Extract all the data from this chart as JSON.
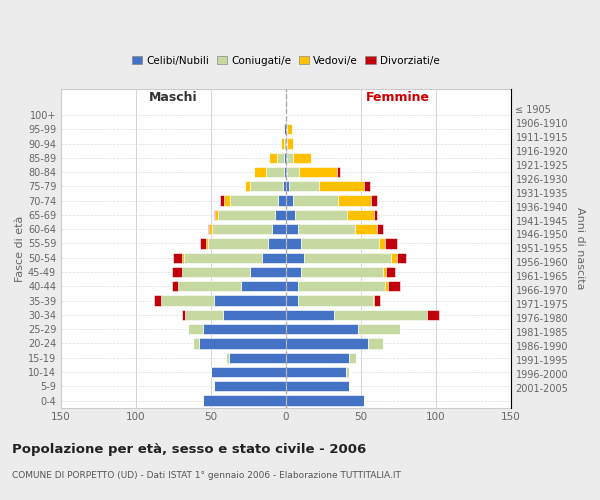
{
  "age_groups_bottom_to_top": [
    "0-4",
    "5-9",
    "10-14",
    "15-19",
    "20-24",
    "25-29",
    "30-34",
    "35-39",
    "40-44",
    "45-49",
    "50-54",
    "55-59",
    "60-64",
    "65-69",
    "70-74",
    "75-79",
    "80-84",
    "85-89",
    "90-94",
    "95-99",
    "100+"
  ],
  "birth_years_bottom_to_top": [
    "2001-2005",
    "1996-2000",
    "1991-1995",
    "1986-1990",
    "1981-1985",
    "1976-1980",
    "1971-1975",
    "1966-1970",
    "1961-1965",
    "1956-1960",
    "1951-1955",
    "1946-1950",
    "1941-1945",
    "1936-1940",
    "1931-1935",
    "1926-1930",
    "1921-1925",
    "1916-1920",
    "1911-1915",
    "1906-1910",
    "≤ 1905"
  ],
  "maschi": {
    "celibi": [
      55,
      48,
      50,
      38,
      58,
      55,
      42,
      48,
      30,
      24,
      16,
      12,
      9,
      7,
      5,
      2,
      1,
      1,
      0,
      1,
      0
    ],
    "coniugati": [
      0,
      0,
      0,
      2,
      4,
      10,
      25,
      35,
      42,
      45,
      52,
      40,
      40,
      38,
      32,
      22,
      12,
      5,
      1,
      0,
      0
    ],
    "vedovi": [
      0,
      0,
      0,
      0,
      0,
      0,
      0,
      0,
      0,
      0,
      1,
      1,
      2,
      2,
      4,
      3,
      8,
      5,
      2,
      1,
      0
    ],
    "divorziati": [
      0,
      0,
      0,
      0,
      0,
      0,
      2,
      5,
      4,
      7,
      6,
      4,
      1,
      1,
      3,
      0,
      0,
      0,
      0,
      0,
      0
    ]
  },
  "femmine": {
    "nubili": [
      52,
      42,
      40,
      42,
      55,
      48,
      32,
      8,
      8,
      10,
      12,
      10,
      8,
      6,
      5,
      2,
      1,
      1,
      0,
      1,
      0
    ],
    "coniugate": [
      0,
      0,
      2,
      5,
      10,
      28,
      62,
      50,
      58,
      55,
      58,
      52,
      38,
      35,
      30,
      20,
      8,
      4,
      1,
      0,
      0
    ],
    "vedove": [
      0,
      0,
      0,
      0,
      0,
      0,
      0,
      1,
      2,
      2,
      4,
      4,
      15,
      18,
      22,
      30,
      25,
      12,
      4,
      3,
      0
    ],
    "divorziate": [
      0,
      0,
      0,
      0,
      0,
      0,
      8,
      4,
      8,
      6,
      6,
      8,
      4,
      2,
      4,
      4,
      2,
      0,
      0,
      0,
      0
    ]
  },
  "colors": {
    "celibi": "#4472c4",
    "coniugati": "#c5d9a0",
    "vedovi": "#ffc000",
    "divorziati": "#c0000a"
  },
  "xlim": 150,
  "title": "Popolazione per età, sesso e stato civile - 2006",
  "subtitle": "COMUNE DI PORPETTO (UD) - Dati ISTAT 1° gennaio 2006 - Elaborazione TUTTITALIA.IT",
  "maschi_label": "Maschi",
  "femmine_label": "Femmine",
  "ylabel_left": "Fasce di età",
  "ylabel_right": "Anni di nascita",
  "legend_labels": [
    "Celibi/Nubili",
    "Coniugati/e",
    "Vedovi/e",
    "Divorziati/e"
  ],
  "bg_color": "#ececec",
  "plot_bg_color": "#ffffff"
}
